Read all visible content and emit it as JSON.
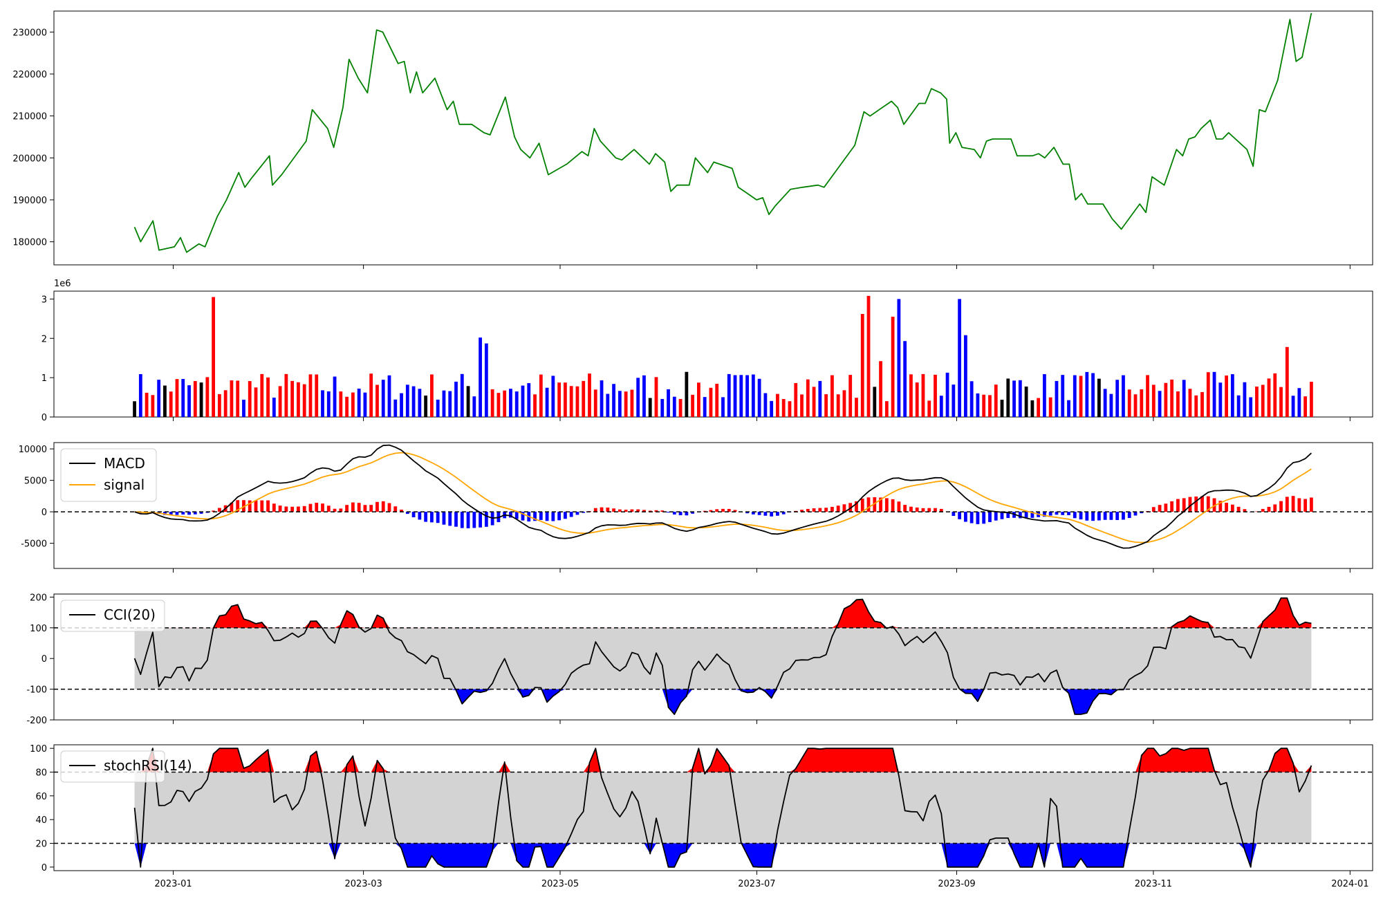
{
  "chart_data": [
    {
      "panel": "price",
      "type": "line",
      "line_color": "#008000",
      "x_range": [
        "2022-11-25",
        "2024-01-08"
      ],
      "ylim": [
        174500,
        235000
      ],
      "y_ticks": [
        180000,
        190000,
        200000,
        210000,
        220000,
        230000
      ],
      "x_ticks": [
        "2023-01",
        "2023-03",
        "2023-05",
        "2023-07",
        "2023-09",
        "2023-11",
        "2024-01"
      ],
      "anchors": [
        [
          "2022-12-20",
          183500
        ],
        [
          "2022-12-22",
          180000
        ],
        [
          "2022-12-26",
          185000
        ],
        [
          "2022-12-28",
          178000
        ],
        [
          "2023-01-02",
          178800
        ],
        [
          "2023-01-04",
          181000
        ],
        [
          "2023-01-06",
          177500
        ],
        [
          "2023-01-10",
          179500
        ],
        [
          "2023-01-12",
          178800
        ],
        [
          "2023-01-16",
          186000
        ],
        [
          "2023-01-19",
          190000
        ],
        [
          "2023-01-23",
          196500
        ],
        [
          "2023-01-25",
          193000
        ],
        [
          "2023-01-27",
          195000
        ],
        [
          "2023-02-02",
          200500
        ],
        [
          "2023-02-03",
          193500
        ],
        [
          "2023-02-06",
          196000
        ],
        [
          "2023-02-14",
          204000
        ],
        [
          "2023-02-16",
          211500
        ],
        [
          "2023-02-21",
          207000
        ],
        [
          "2023-02-23",
          202500
        ],
        [
          "2023-02-26",
          212000
        ],
        [
          "2023-02-28",
          223500
        ],
        [
          "2023-03-03",
          219000
        ],
        [
          "2023-03-06",
          215500
        ],
        [
          "2023-03-09",
          230500
        ],
        [
          "2023-03-11",
          230000
        ],
        [
          "2023-03-16",
          222500
        ],
        [
          "2023-03-18",
          223000
        ],
        [
          "2023-03-20",
          215500
        ],
        [
          "2023-03-22",
          220500
        ],
        [
          "2023-03-24",
          215500
        ],
        [
          "2023-03-28",
          219000
        ],
        [
          "2023-04-01",
          211500
        ],
        [
          "2023-04-03",
          213500
        ],
        [
          "2023-04-05",
          208000
        ],
        [
          "2023-04-09",
          208000
        ],
        [
          "2023-04-13",
          206000
        ],
        [
          "2023-04-15",
          205500
        ],
        [
          "2023-04-20",
          214500
        ],
        [
          "2023-04-23",
          205000
        ],
        [
          "2023-04-25",
          202000
        ],
        [
          "2023-04-28",
          200000
        ],
        [
          "2023-05-01",
          203500
        ],
        [
          "2023-05-04",
          196000
        ],
        [
          "2023-05-10",
          198500
        ],
        [
          "2023-05-15",
          201500
        ],
        [
          "2023-05-17",
          200500
        ],
        [
          "2023-05-19",
          207000
        ],
        [
          "2023-05-21",
          204000
        ],
        [
          "2023-05-26",
          200000
        ],
        [
          "2023-05-28",
          199500
        ],
        [
          "2023-06-01",
          202000
        ],
        [
          "2023-06-06",
          198500
        ],
        [
          "2023-06-08",
          201000
        ],
        [
          "2023-06-11",
          199000
        ],
        [
          "2023-06-13",
          192000
        ],
        [
          "2023-06-15",
          193500
        ],
        [
          "2023-06-19",
          193500
        ],
        [
          "2023-06-21",
          200000
        ],
        [
          "2023-06-25",
          196500
        ],
        [
          "2023-06-27",
          199000
        ],
        [
          "2023-07-03",
          197500
        ],
        [
          "2023-07-05",
          193000
        ],
        [
          "2023-07-07",
          192000
        ],
        [
          "2023-07-11",
          190000
        ],
        [
          "2023-07-13",
          190500
        ],
        [
          "2023-07-15",
          186500
        ],
        [
          "2023-07-17",
          188500
        ],
        [
          "2023-07-22",
          192500
        ],
        [
          "2023-07-26",
          193000
        ],
        [
          "2023-07-31",
          193500
        ],
        [
          "2023-08-02",
          193000
        ],
        [
          "2023-08-12",
          203000
        ],
        [
          "2023-08-15",
          211000
        ],
        [
          "2023-08-17",
          210000
        ],
        [
          "2023-08-24",
          213500
        ],
        [
          "2023-08-26",
          212000
        ],
        [
          "2023-08-28",
          208000
        ],
        [
          "2023-09-02",
          213000
        ],
        [
          "2023-09-04",
          213000
        ],
        [
          "2023-09-06",
          216500
        ],
        [
          "2023-09-09",
          215500
        ],
        [
          "2023-09-11",
          214000
        ],
        [
          "2023-09-12",
          203500
        ],
        [
          "2023-09-14",
          206000
        ],
        [
          "2023-09-16",
          202500
        ],
        [
          "2023-09-20",
          202000
        ],
        [
          "2023-09-22",
          200000
        ],
        [
          "2023-09-24",
          204000
        ],
        [
          "2023-09-26",
          204500
        ],
        [
          "2023-10-02",
          204500
        ],
        [
          "2023-10-04",
          200500
        ],
        [
          "2023-10-09",
          200500
        ],
        [
          "2023-10-11",
          201000
        ],
        [
          "2023-10-13",
          200000
        ],
        [
          "2023-10-16",
          202500
        ],
        [
          "2023-10-19",
          198500
        ],
        [
          "2023-10-21",
          198500
        ],
        [
          "2023-10-23",
          190000
        ],
        [
          "2023-10-25",
          191500
        ],
        [
          "2023-10-27",
          189000
        ],
        [
          "2023-11-01",
          189000
        ],
        [
          "2023-11-04",
          185500
        ],
        [
          "2023-11-07",
          183000
        ],
        [
          "2023-11-13",
          189000
        ],
        [
          "2023-11-15",
          187000
        ],
        [
          "2023-11-17",
          195500
        ],
        [
          "2023-11-21",
          193500
        ],
        [
          "2023-11-25",
          202000
        ],
        [
          "2023-11-27",
          200500
        ],
        [
          "2023-11-29",
          204500
        ],
        [
          "2023-12-01",
          205000
        ],
        [
          "2023-12-03",
          207000
        ],
        [
          "2023-12-06",
          209000
        ],
        [
          "2023-12-08",
          204500
        ],
        [
          "2023-12-10",
          204500
        ],
        [
          "2023-12-12",
          206000
        ],
        [
          "2023-12-18",
          202000
        ],
        [
          "2023-12-20",
          198000
        ],
        [
          "2023-12-22",
          211500
        ],
        [
          "2023-12-24",
          211000
        ],
        [
          "2023-12-28",
          218500
        ],
        [
          "2024-01-01",
          233000
        ],
        [
          "2024-01-03",
          223000
        ],
        [
          "2024-01-05",
          224000
        ],
        [
          "2024-01-08",
          234500
        ]
      ]
    },
    {
      "panel": "volume",
      "type": "bar",
      "scale_label": "1e6",
      "ylim": [
        0,
        3.2
      ],
      "y_ticks": [
        0,
        1,
        2,
        3
      ],
      "colors": {
        "up": "#ff0000",
        "down": "#0000ff",
        "flat": "#000000"
      },
      "spikes": [
        [
          13,
          3.05
        ],
        [
          57,
          2.02
        ],
        [
          58,
          1.87
        ],
        [
          120,
          2.62
        ],
        [
          121,
          3.08
        ],
        [
          123,
          1.42
        ],
        [
          125,
          2.55
        ],
        [
          126,
          3.0
        ],
        [
          127,
          1.93
        ],
        [
          136,
          3.0
        ],
        [
          137,
          2.08
        ],
        [
          190,
          1.78
        ]
      ]
    },
    {
      "panel": "macd",
      "type": "line",
      "ylim": [
        -9000,
        11000
      ],
      "y_ticks": [
        -5000,
        0,
        5000,
        10000
      ],
      "legend": [
        {
          "label": "MACD",
          "color": "#000000"
        },
        {
          "label": "signal",
          "color": "#ffa500"
        }
      ],
      "hist_colors": {
        "up": "#ff0000",
        "down": "#0000ff"
      }
    },
    {
      "panel": "cci",
      "type": "area",
      "ylim": [
        -200,
        210
      ],
      "y_ticks": [
        -200,
        -100,
        0,
        100,
        200
      ],
      "thresholds": [
        100,
        -100
      ],
      "legend": [
        {
          "label": "CCI(20)",
          "color": "#000000"
        }
      ],
      "fills": {
        "upper": "#ff0000",
        "lower": "#0000ff",
        "band": "#d3d3d3"
      }
    },
    {
      "panel": "stochrsi",
      "type": "area",
      "ylim": [
        -3,
        103
      ],
      "y_ticks": [
        0,
        20,
        40,
        60,
        80,
        100
      ],
      "thresholds": [
        80,
        20
      ],
      "legend": [
        {
          "label": "stochRSI(14)",
          "color": "#000000"
        }
      ],
      "fills": {
        "upper": "#ff0000",
        "lower": "#0000ff",
        "band": "#d3d3d3"
      }
    }
  ]
}
